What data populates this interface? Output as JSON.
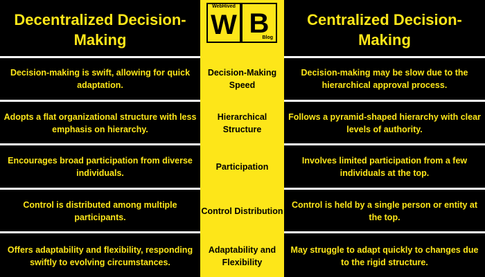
{
  "colors": {
    "accent": "#fde619",
    "background": "#000000",
    "separator": "#ffffff"
  },
  "header": {
    "left_title": "Decentralized Decision-Making",
    "right_title": "Centralized Decision-Making"
  },
  "logo": {
    "top_label": "WebHived",
    "w_letter": "W",
    "b_letter": "B",
    "sub_label": "Blog"
  },
  "rows": [
    {
      "left": "Decision-making is swift, allowing for quick adaptation.",
      "center": "Decision-Making Speed",
      "right": "Decision-making may be slow due to the hierarchical approval process."
    },
    {
      "left": "Adopts a flat organizational structure with less emphasis on hierarchy.",
      "center": "Hierarchical Structure",
      "right": "Follows a pyramid-shaped hierarchy with clear levels of authority."
    },
    {
      "left": "Encourages broad participation from diverse individuals.",
      "center": "Participation",
      "right": "Involves limited participation from a few individuals at the top."
    },
    {
      "left": "Control is distributed among multiple participants.",
      "center": "Control Distribution",
      "right": "Control is held by a single person or entity at the top."
    },
    {
      "left": "Offers adaptability and flexibility, responding swiftly to evolving circumstances.",
      "center": "Adaptability and Flexibility",
      "right": "May struggle to adapt quickly to changes due to the rigid structure."
    }
  ]
}
